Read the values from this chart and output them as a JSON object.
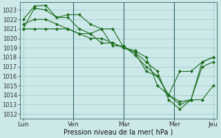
{
  "background_color": "#cce8e8",
  "grid_color": "#99cccc",
  "line_color": "#1a6b1a",
  "marker_color": "#1a6b1a",
  "xlabel": "Pression niveau de la mer( hPa )",
  "ylim": [
    1011.5,
    1023.8
  ],
  "yticks": [
    1012,
    1013,
    1014,
    1015,
    1016,
    1017,
    1018,
    1019,
    1020,
    1021,
    1022,
    1023
  ],
  "series": [
    [
      1021.0,
      1023.2,
      1023.0,
      1022.2,
      1022.2,
      1021.0,
      1020.5,
      1021.0,
      1021.0,
      1019.0,
      1018.5,
      1016.5,
      1016.0,
      1014.0,
      1016.5,
      1016.5,
      1017.5,
      1018.0
    ],
    [
      1022.0,
      1023.4,
      1023.5,
      1022.2,
      1022.5,
      1022.5,
      1021.5,
      1021.0,
      1019.2,
      1019.2,
      1018.2,
      1017.0,
      1016.0,
      1014.0,
      1013.3,
      1013.5,
      1013.5,
      1015.0
    ],
    [
      1021.5,
      1022.0,
      1022.0,
      1021.5,
      1021.0,
      1020.5,
      1020.5,
      1019.5,
      1019.5,
      1019.0,
      1018.7,
      1018.0,
      1015.0,
      1014.0,
      1013.0,
      1013.5,
      1017.0,
      1017.5
    ],
    [
      1021.0,
      1021.0,
      1021.0,
      1021.0,
      1021.0,
      1020.5,
      1020.0,
      1020.0,
      1019.5,
      1019.0,
      1018.5,
      1017.5,
      1016.5,
      1013.5,
      1012.5,
      1013.5,
      1017.5,
      1018.0
    ]
  ],
  "n_points": 18,
  "day_positions": [
    0,
    4.5,
    9,
    13.5,
    17
  ],
  "day_labels": [
    "Lun",
    "Ven",
    "Mar",
    "Mer",
    "Jeu"
  ],
  "vline_positions": [
    4.5,
    9,
    13.5
  ],
  "xlabel_fontsize": 7,
  "ytick_fontsize": 6,
  "xtick_fontsize": 6.5
}
